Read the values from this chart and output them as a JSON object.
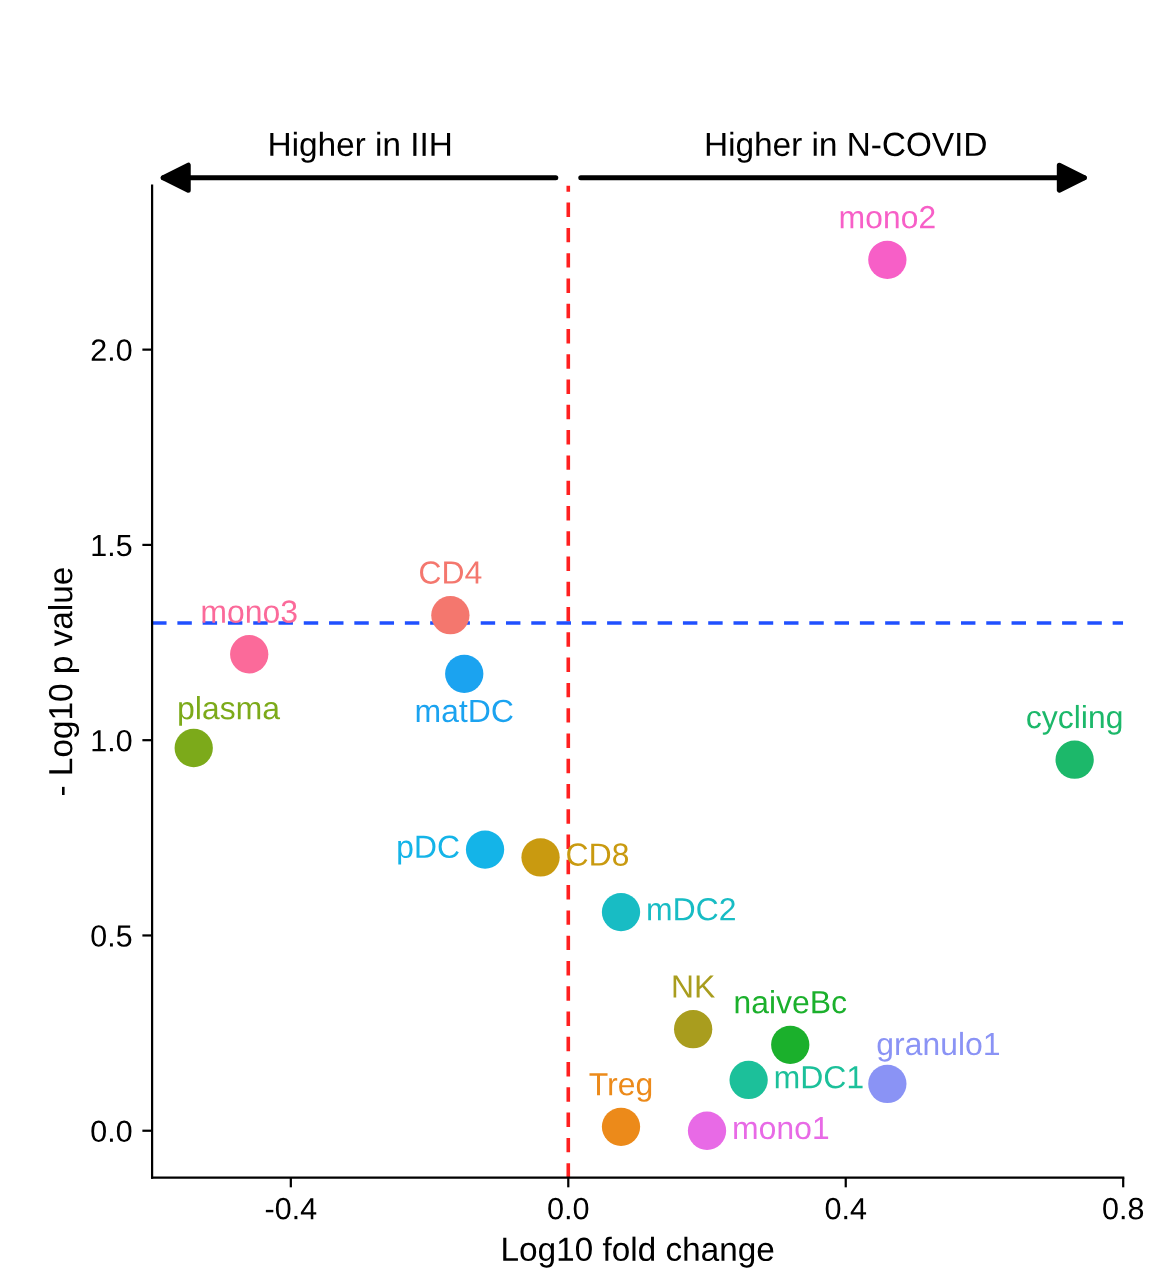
{
  "chart_data": {
    "type": "scatter",
    "xlabel": "Log10 fold change",
    "ylabel": "- Log10 p value",
    "xlim": [
      -0.6,
      0.8
    ],
    "ylim": [
      -0.12,
      2.42
    ],
    "xticks": [
      {
        "value": -0.4,
        "label": "-0.4"
      },
      {
        "value": 0,
        "label": "0.0"
      },
      0.4,
      0.8
    ],
    "yticks": [
      {
        "value": 0,
        "label": "0.0"
      },
      0.5,
      {
        "value": 1,
        "label": "1.0"
      },
      1.5,
      {
        "value": 2,
        "label": "2.0"
      }
    ],
    "grid": false,
    "legend": false,
    "marker": "circle",
    "annotations": [
      "Higher in IIH",
      "Higher in N-COVID"
    ],
    "ref_lines": [
      {
        "axis": "x",
        "value": 0,
        "color": "#ff2020",
        "line_style": "dashed"
      },
      {
        "axis": "y",
        "value": 1.3,
        "color": "#2050ff",
        "line_style": "dashed"
      }
    ],
    "series": [
      {
        "name": "mono2",
        "color": "#f75fc7",
        "x": [
          0.46
        ],
        "values": [
          2.23
        ]
      },
      {
        "name": "mono3",
        "color": "#fb6a9a",
        "x": [
          -0.46
        ],
        "values": [
          1.22
        ]
      },
      {
        "name": "CD4",
        "color": "#f4776e",
        "x": [
          -0.17
        ],
        "values": [
          1.32
        ]
      },
      {
        "name": "matDC",
        "color": "#1ba3f0",
        "x": [
          -0.15
        ],
        "values": [
          1.17
        ]
      },
      {
        "name": "plasma",
        "color": "#7caa1a",
        "x": [
          -0.54
        ],
        "values": [
          0.98
        ]
      },
      {
        "name": "cycling",
        "color": "#1cb86a",
        "x": [
          0.73
        ],
        "values": [
          0.95
        ]
      },
      {
        "name": "pDC",
        "color": "#14b4e8",
        "x": [
          -0.12
        ],
        "values": [
          0.72
        ]
      },
      {
        "name": "CD8",
        "color": "#c99a10",
        "x": [
          -0.04
        ],
        "values": [
          0.7
        ]
      },
      {
        "name": "mDC2",
        "color": "#18bcc4",
        "x": [
          0.076
        ],
        "values": [
          0.56
        ]
      },
      {
        "name": "NK",
        "color": "#a99d1e",
        "x": [
          0.18
        ],
        "values": [
          0.26
        ]
      },
      {
        "name": "naiveBc",
        "color": "#1bb02c",
        "x": [
          0.32
        ],
        "values": [
          0.22
        ]
      },
      {
        "name": "granulo1",
        "color": "#8a93f5",
        "x": [
          0.46
        ],
        "values": [
          0.12
        ]
      },
      {
        "name": "mDC1",
        "color": "#1cc09a",
        "x": [
          0.26
        ],
        "values": [
          0.13
        ]
      },
      {
        "name": "Treg",
        "color": "#ec8a1a",
        "x": [
          0.076
        ],
        "values": [
          0.01
        ]
      },
      {
        "name": "mono1",
        "color": "#e86ae6",
        "x": [
          0.2
        ],
        "values": [
          0.0
        ]
      }
    ]
  }
}
